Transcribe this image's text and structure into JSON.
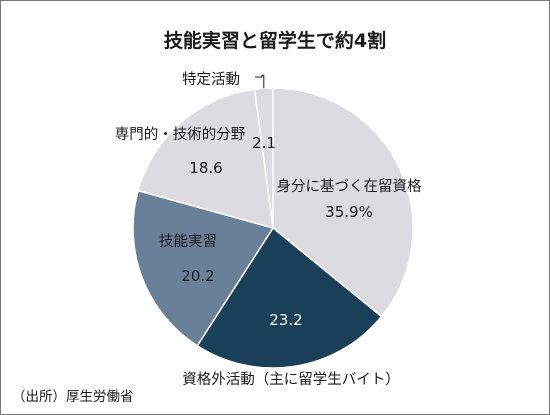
{
  "chart_data": {
    "type": "pie",
    "title": "技能実習と留学生で約4割",
    "source": "（出所）厚生労働省",
    "start": "top",
    "direction": "clockwise",
    "slices": [
      {
        "label": "身分に基づく在留資格",
        "value": 35.9,
        "value_label": "35.9%",
        "color": "#dcdbe2"
      },
      {
        "label": "資格外活動（主に留学生バイト）",
        "value": 23.2,
        "value_label": "23.2",
        "color": "#193f59"
      },
      {
        "label": "技能実習",
        "value": 20.2,
        "value_label": "20.2",
        "color": "#6a8098"
      },
      {
        "label": "専門的・技術的分野",
        "value": 18.6,
        "value_label": "18.6",
        "color": "#dcdbe2"
      },
      {
        "label": "特定活動",
        "value": 2.1,
        "value_label": "2.1",
        "color": "#dcdbe2"
      }
    ]
  }
}
